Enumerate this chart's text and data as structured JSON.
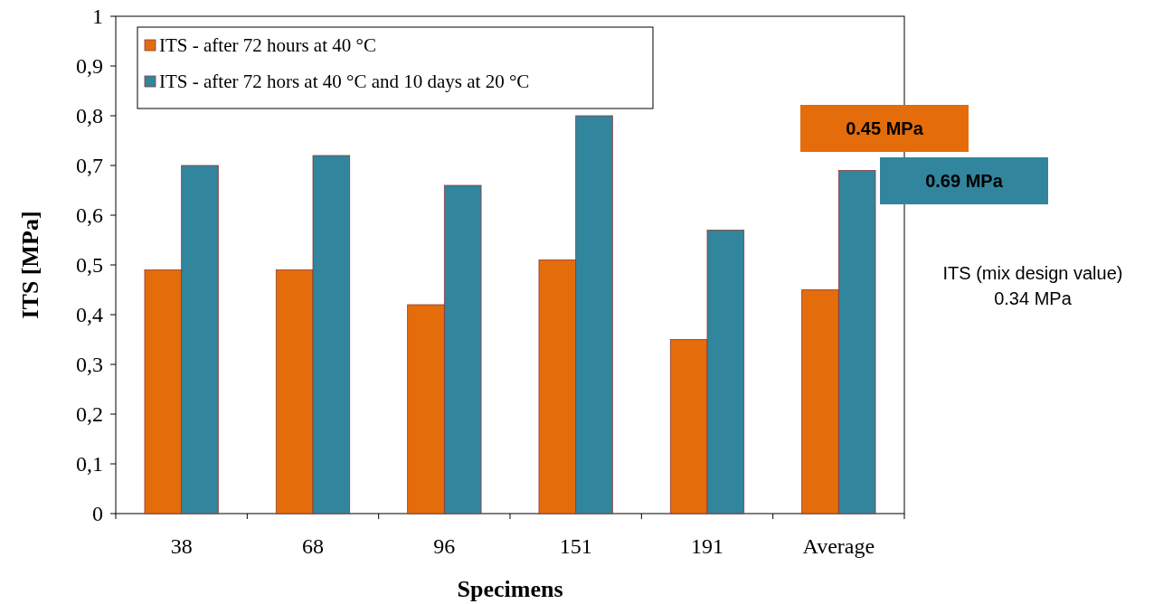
{
  "chart_data": {
    "type": "bar",
    "xlabel": "Specimens",
    "ylabel": "ITS [MPa]",
    "categories": [
      "38",
      "68",
      "96",
      "151",
      "191",
      "Average"
    ],
    "series": [
      {
        "name": "ITS - after 72 hours at 40 °C",
        "color": "#e46c0a",
        "values": [
          0.49,
          0.49,
          0.42,
          0.51,
          0.35,
          0.45
        ]
      },
      {
        "name": "ITS - after 72 hors at 40 °C and 10 days at 20 °C",
        "color": "#31859c",
        "values": [
          0.7,
          0.72,
          0.66,
          0.8,
          0.57,
          0.69
        ]
      }
    ],
    "ylim": [
      0,
      1
    ],
    "yticks": [
      0,
      {
        "value": 0.1,
        "label": "0,1"
      },
      {
        "value": 0.2,
        "label": "0,2"
      },
      {
        "value": 0.3,
        "label": "0,3"
      },
      {
        "value": 0.4,
        "label": "0,4"
      },
      {
        "value": 0.5,
        "label": "0,5"
      },
      {
        "value": 0.6,
        "label": "0,6"
      },
      {
        "value": 0.7,
        "label": "0,7"
      },
      {
        "value": 0.8,
        "label": "0,8"
      },
      {
        "value": 0.9,
        "label": "0,9"
      },
      1
    ],
    "legend": "top left",
    "annotations": [
      "0.45 MPa",
      "0.69 MPa",
      "ITS (mix design value)\n0.34 MPa"
    ]
  }
}
